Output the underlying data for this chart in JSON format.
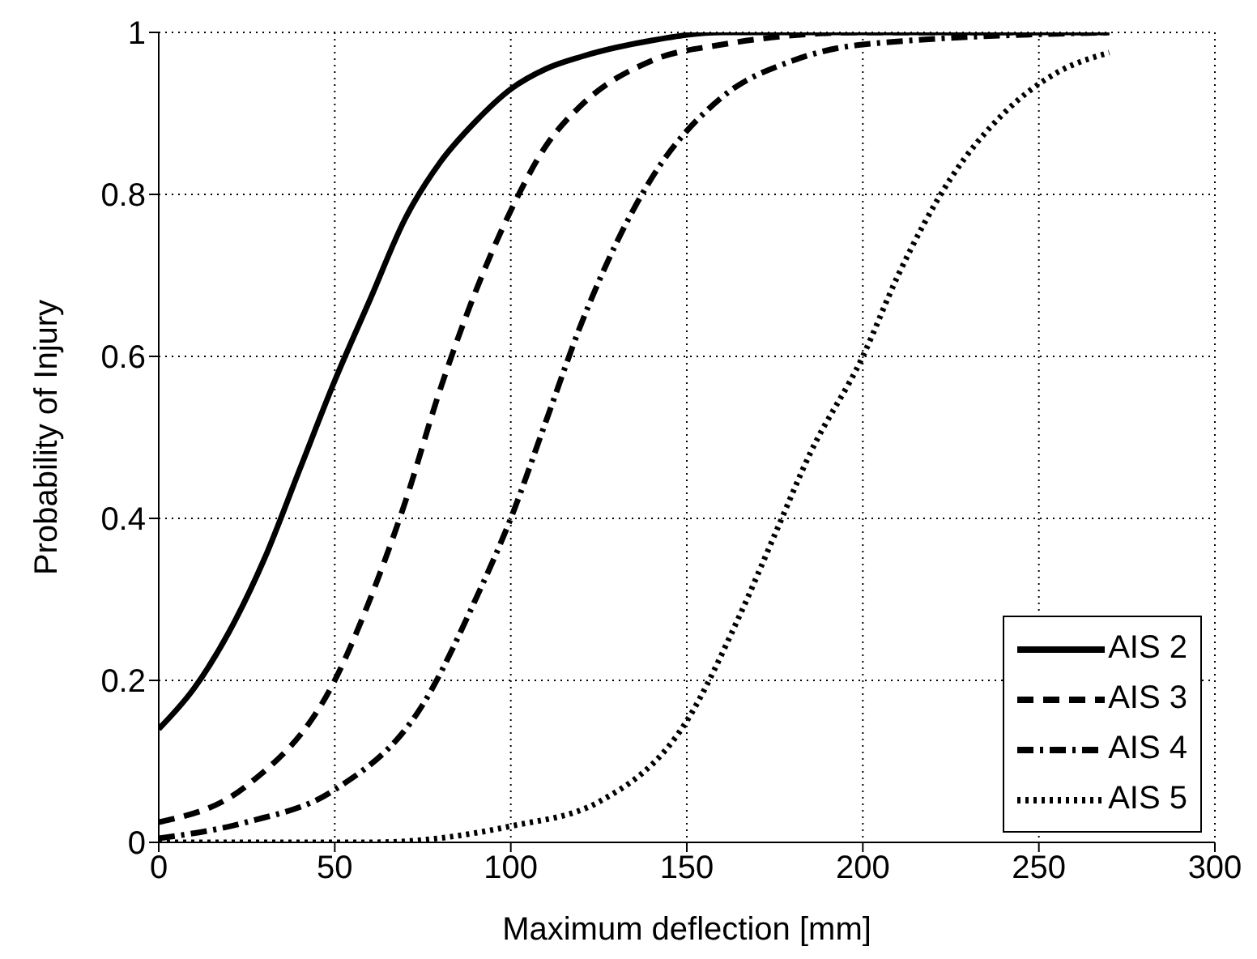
{
  "chart_data": {
    "type": "line",
    "xlabel": "Maximum deflection [mm]",
    "ylabel": "Probability of Injury",
    "xlim": [
      0,
      300
    ],
    "xticks": [
      0,
      50,
      100,
      150,
      200,
      250,
      300
    ],
    "ylim": [
      0,
      1
    ],
    "yticks": [
      0,
      0.2,
      0.4,
      0.6,
      0.8,
      1
    ],
    "grid": true,
    "legend": "bottom right",
    "marker": "none",
    "series": [
      {
        "name": "AIS 2",
        "color": "#000000",
        "line_style": "solid",
        "x": [
          0,
          10,
          20,
          30,
          40,
          50,
          60,
          70,
          80,
          90,
          100,
          110,
          120,
          140,
          160,
          200,
          270
        ],
        "values": [
          0.14,
          0.19,
          0.26,
          0.35,
          0.46,
          0.57,
          0.67,
          0.77,
          0.84,
          0.89,
          0.93,
          0.955,
          0.97,
          0.99,
          1,
          1,
          1
        ]
      },
      {
        "name": "AIS 3",
        "color": "#000000",
        "line_style": "dashed",
        "x": [
          0,
          25,
          50,
          60,
          70,
          80,
          90,
          100,
          110,
          120,
          140,
          160,
          200,
          270
        ],
        "values": [
          0.025,
          0.07,
          0.2,
          0.3,
          0.42,
          0.56,
          0.68,
          0.78,
          0.86,
          0.91,
          0.965,
          0.985,
          1,
          1
        ]
      },
      {
        "name": "AIS 4",
        "color": "#000000",
        "line_style": "dashdot",
        "x": [
          0,
          25,
          50,
          75,
          90,
          100,
          110,
          120,
          130,
          140,
          160,
          180,
          200,
          270
        ],
        "values": [
          0.005,
          0.025,
          0.065,
          0.17,
          0.3,
          0.4,
          0.52,
          0.64,
          0.74,
          0.82,
          0.92,
          0.965,
          0.985,
          1
        ]
      },
      {
        "name": "AIS 5",
        "color": "#000000",
        "line_style": "dotted",
        "x": [
          0,
          60,
          100,
          125,
          150,
          165,
          175,
          185,
          200,
          210,
          225,
          240,
          255,
          270
        ],
        "values": [
          0,
          0,
          0.02,
          0.05,
          0.15,
          0.28,
          0.38,
          0.48,
          0.6,
          0.7,
          0.82,
          0.9,
          0.95,
          0.975
        ]
      }
    ]
  }
}
